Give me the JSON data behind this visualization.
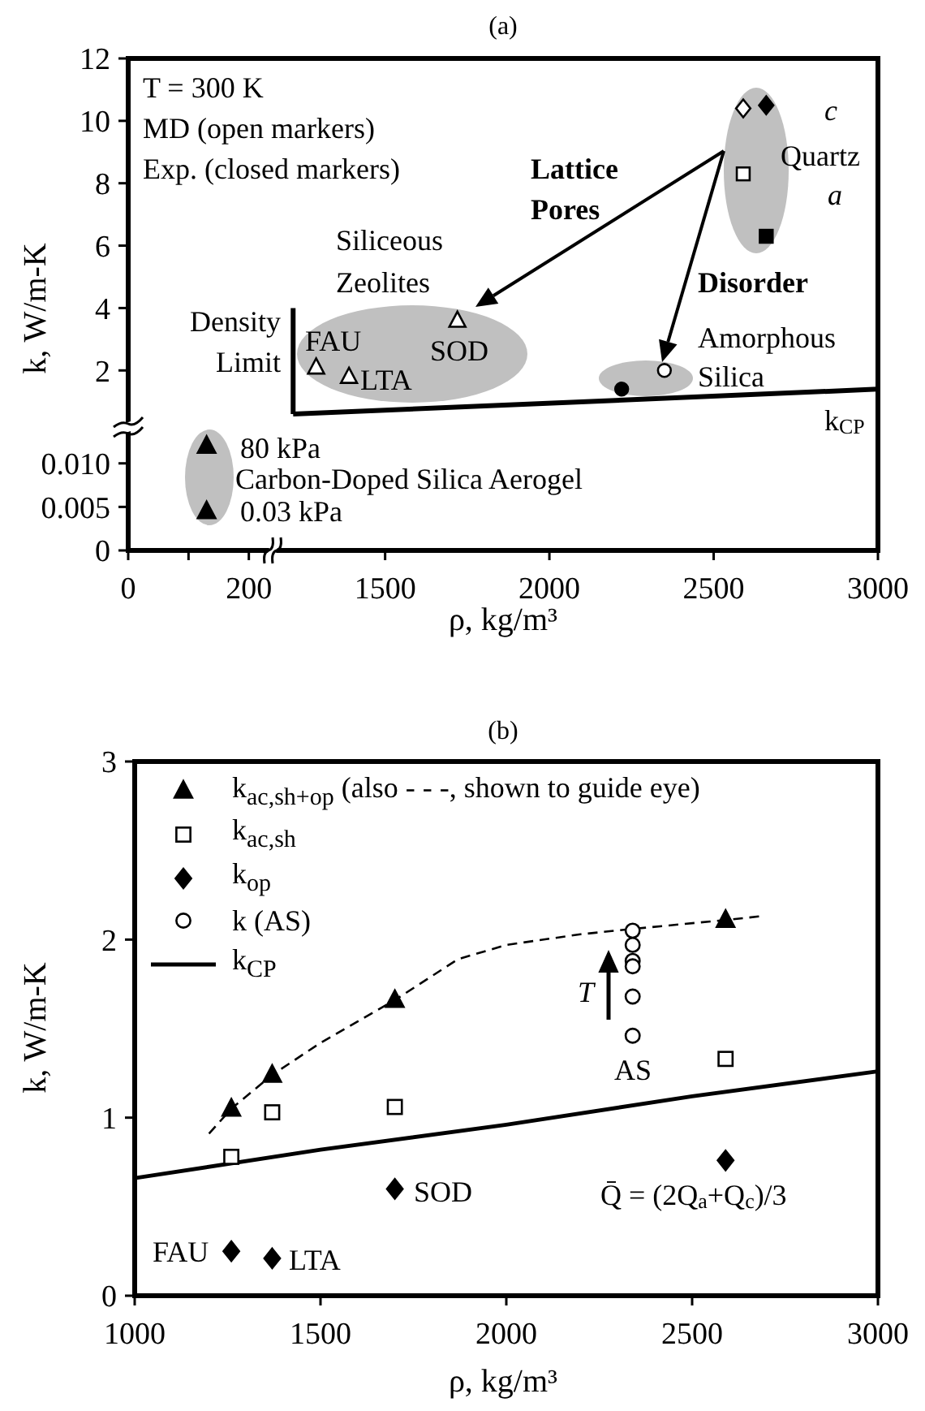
{
  "chart_data": [
    {
      "type": "scatter",
      "title": "(a)",
      "xlabel": "ρ, kg/m³",
      "ylabel": "k, W/m-K",
      "xlim": [
        718,
        3000
      ],
      "ylim": [
        -3.77,
        12
      ],
      "xticks": [
        1500,
        2000,
        2500,
        3000
      ],
      "yticks": [
        2,
        4,
        6,
        8,
        10,
        12
      ],
      "annotations": [
        "T = 300 K",
        "MD (open markers)",
        "Exp. (closed markers)",
        "Lattice Pores",
        "Siliceous Zeolites",
        "Density Limit",
        "FAU",
        "SOD",
        "LTA",
        "Disorder",
        "Amorphous Silica",
        "c",
        "Quartz",
        "a",
        "k$_{CP}$"
      ],
      "series": [
        {
          "color": "#ffffff",
          "marker": "diamond",
          "x": [
            2590
          ],
          "values": [
            10.4
          ]
        },
        {
          "color": "#000000",
          "marker": "diamond",
          "x": [
            2660
          ],
          "values": [
            10.5
          ]
        },
        {
          "color": "#ffffff",
          "marker": "square",
          "x": [
            2590
          ],
          "values": [
            8.3
          ]
        },
        {
          "color": "#000000",
          "marker": "square",
          "x": [
            2660
          ],
          "values": [
            6.3
          ]
        },
        {
          "color": "#ffffff",
          "marker": "triangle",
          "x": [
            1290,
            1390,
            1720
          ],
          "values": [
            2.1,
            1.8,
            3.6
          ]
        },
        {
          "color": "#ffffff",
          "marker": "circle",
          "x": [
            2350
          ],
          "values": [
            2.0
          ]
        },
        {
          "color": "#000000",
          "marker": "circle",
          "x": [
            2220
          ],
          "values": [
            1.4
          ]
        },
        {
          "type": "line",
          "color": "#000000",
          "x": [
            1220,
            3000
          ],
          "values": [
            0.6,
            1.4
          ]
        },
        {
          "type": "line",
          "color": "#000000",
          "x": [
            1220,
            1220
          ],
          "values": [
            0.6,
            4.0
          ]
        }
      ]
    },
    {
      "type": "scatter",
      "xlim": [
        0,
        1243
      ],
      "ylim": [
        0,
        0.0565
      ],
      "xticks": [
        0,
        {
          "value": 100,
          "label": null
        },
        200
      ],
      "yticks": [
        0,
        0.005,
        {
          "value": 0.01,
          "label": "0.010"
        }
      ],
      "annotations": [
        "80 kPa",
        "Carbon-Doped Silica Aerogel",
        "0.03 kPa"
      ],
      "series": [
        {
          "color": "#000000",
          "marker": "triangle",
          "x": [
            130,
            130
          ],
          "values": [
            0.012,
            0.0045
          ]
        }
      ]
    },
    {
      "type": "scatter",
      "title": "(b)",
      "xlabel": "ρ, kg/m³",
      "ylabel": "k, W/m-K",
      "xlim": [
        1000,
        3000
      ],
      "ylim": [
        0,
        3
      ],
      "xticks": [
        1000,
        1500,
        2000,
        2500,
        3000
      ],
      "yticks": [
        0,
        1,
        2,
        3
      ],
      "legend": "top left",
      "annotations": [
        "T",
        "AS",
        "SOD",
        "FAU",
        "LTA",
        "Q̄ = (2Q$_{a}$+Q$_{c}$)/3"
      ],
      "series": [
        {
          "name": "k$_{ac,sh+op}$ (also - - -, shown to guide eye)",
          "color": "#000000",
          "marker": "triangle",
          "x": [
            1260,
            1370,
            1700,
            2590
          ],
          "values": [
            1.05,
            1.24,
            1.66,
            2.11
          ]
        },
        {
          "name": "k$_{ac,sh}$",
          "color": "#ffffff",
          "marker": "square",
          "x": [
            1260,
            1370,
            1700,
            2590
          ],
          "values": [
            0.78,
            1.03,
            1.06,
            1.33
          ]
        },
        {
          "name": "k$_{op}$",
          "color": "#000000",
          "marker": "diamond",
          "x": [
            1260,
            1370,
            1700,
            2590
          ],
          "values": [
            0.25,
            0.21,
            0.6,
            0.76
          ]
        },
        {
          "name": "k (AS)",
          "color": "#ffffff",
          "marker": "circle",
          "x": [
            2340,
            2340,
            2340,
            2340,
            2340,
            2340
          ],
          "values": [
            2.05,
            1.97,
            1.88,
            1.85,
            1.68,
            1.46
          ]
        },
        {
          "name": "k$_{CP}$",
          "type": "line",
          "line_style": "solid",
          "color": "#000000",
          "x": [
            1000,
            1500,
            2000,
            2500,
            3000
          ],
          "values": [
            0.66,
            0.82,
            0.96,
            1.12,
            1.26
          ]
        },
        {
          "type": "line",
          "line_style": "dashed",
          "color": "#000000",
          "x": [
            1200,
            1260,
            1370,
            1500,
            1700,
            1870,
            2000,
            2200,
            2340,
            2590,
            2680
          ],
          "values": [
            0.91,
            1.05,
            1.24,
            1.42,
            1.66,
            1.89,
            1.97,
            2.03,
            2.06,
            2.11,
            2.13
          ]
        }
      ]
    }
  ]
}
